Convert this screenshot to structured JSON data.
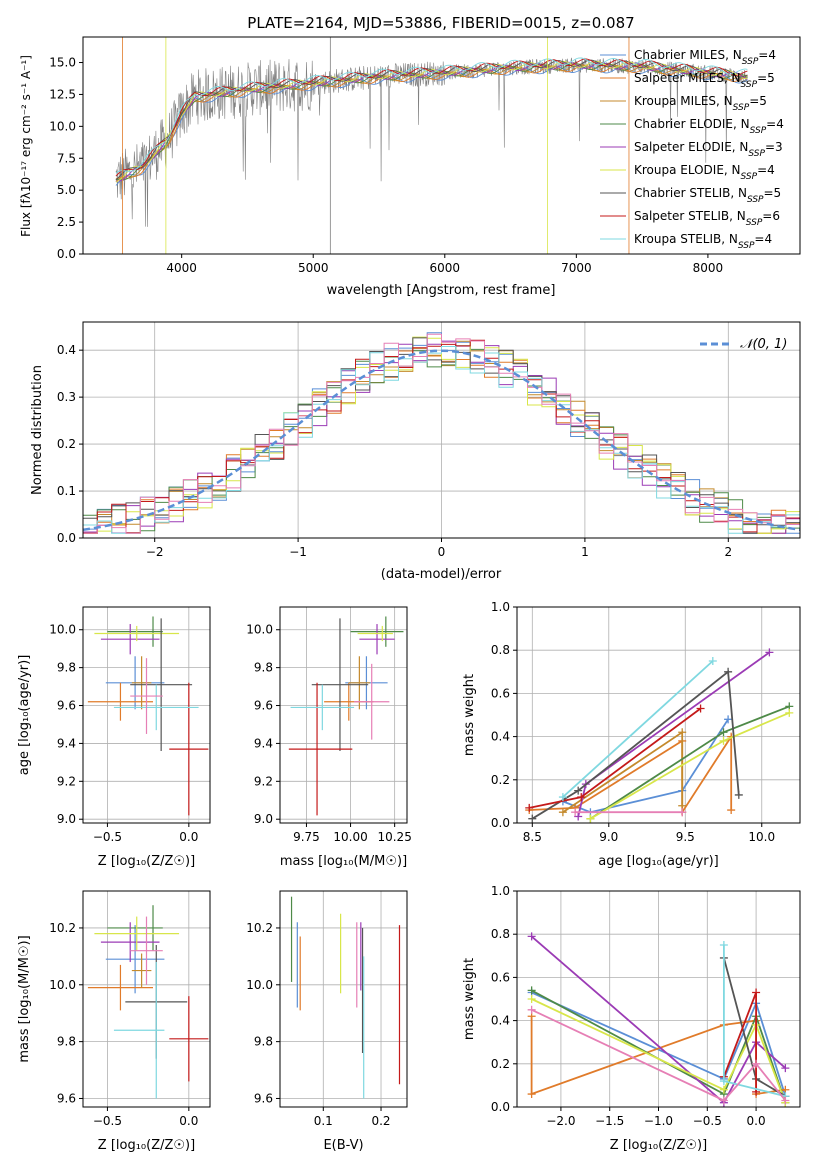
{
  "colors": {
    "chabrier_miles": "#5b8fd6",
    "salpeter_miles": "#e07b2a",
    "kroupa_miles": "#c48a2c",
    "chabrier_elodie": "#4e8a48",
    "salpeter_elodie": "#9b3bb5",
    "kroupa_elodie": "#d8e64a",
    "chabrier_stelib": "#555555",
    "salpeter_stelib": "#c41a1a",
    "kroupa_stelib": "#7fd8e0",
    "pink": "#e67fb5",
    "lime": "#b8e04a",
    "data": "#808080",
    "normal": "#5b8fd6"
  },
  "chart_data": [
    {
      "id": "spectrum",
      "type": "line",
      "title": "PLATE=2164, MJD=53886, FIBERID=0015, z=0.087",
      "xlabel": "wavelength [Angstrom, rest frame]",
      "ylabel": "Flux [fλ10⁻¹⁷ erg cm⁻² s⁻¹ A⁻¹]",
      "xlim": [
        3250,
        8700
      ],
      "ylim": [
        0,
        17
      ],
      "xticks": [
        "4000",
        "5000",
        "6000",
        "7000",
        "8000"
      ],
      "yticks": [
        "0.0",
        "2.5",
        "5.0",
        "7.5",
        "10.0",
        "12.5",
        "15.0"
      ],
      "legend": [
        "Chabrier MILES, N_SSP=4",
        "Salpeter MILES, N_SSP=5",
        "Kroupa MILES, N_SSP=5",
        "Chabrier ELODIE, N_SSP=4",
        "Salpeter ELODIE, N_SSP=3",
        "Kroupa ELODIE, N_SSP=4",
        "Chabrier STELIB, N_SSP=5",
        "Salpeter STELIB, N_SSP=6",
        "Kroupa STELIB, N_SSP=4"
      ],
      "model_curve": {
        "x": [
          3500,
          3700,
          3900,
          4000,
          4100,
          4300,
          4500,
          4800,
          5000,
          5500,
          6000,
          6500,
          7000,
          7500,
          8000,
          8300
        ],
        "y": [
          5.8,
          6.8,
          9.0,
          11.0,
          12.3,
          12.6,
          12.9,
          13.2,
          13.4,
          13.9,
          14.2,
          14.6,
          14.8,
          14.7,
          14.2,
          13.9
        ]
      }
    },
    {
      "id": "residuals",
      "type": "bar",
      "xlabel": "(data-model)/error",
      "ylabel": "Normed distribution",
      "xlim": [
        -2.5,
        2.5
      ],
      "ylim": [
        0,
        0.46
      ],
      "xticks": [
        "−2",
        "−1",
        "0",
        "1",
        "2"
      ],
      "yticks": [
        "0.0",
        "0.1",
        "0.2",
        "0.3",
        "0.4"
      ],
      "legend": [
        "𝒩(0, 1)"
      ],
      "bin_width": 0.1,
      "bin_start": -2.5
    },
    {
      "id": "age_vs_Z",
      "type": "scatter",
      "xlabel": "Z [log₁₀(Z/Z☉)]",
      "ylabel": "age  [log₁₀(age/yr)]",
      "xlim": [
        -0.65,
        0.13
      ],
      "ylim": [
        8.98,
        10.12
      ],
      "xticks": [
        "−0.5",
        "0.0"
      ],
      "xtick_values": [
        -0.5,
        0.0
      ],
      "yticks": [
        "9.0",
        "9.2",
        "9.4",
        "9.6",
        "9.8",
        "10.0"
      ],
      "ytick_values": [
        9.0,
        9.2,
        9.4,
        9.6,
        9.8,
        10.0
      ],
      "points": [
        {
          "color": "chabrier_miles",
          "x": -0.33,
          "y": 9.72,
          "xerr": [
            0.18,
            0.18
          ],
          "yerr": [
            0.14,
            0.14
          ]
        },
        {
          "color": "salpeter_miles",
          "x": -0.42,
          "y": 9.62,
          "xerr": [
            0.2,
            0.2
          ],
          "yerr": [
            0.1,
            0.1
          ]
        },
        {
          "color": "kroupa_miles",
          "x": -0.29,
          "y": 9.72,
          "xerr": [
            0.06,
            0.06
          ],
          "yerr": [
            0.14,
            0.14
          ]
        },
        {
          "color": "chabrier_elodie",
          "x": -0.22,
          "y": 9.99,
          "xerr": [
            0.28,
            0.06
          ],
          "yerr": [
            0.08,
            0.08
          ]
        },
        {
          "color": "salpeter_elodie",
          "x": -0.36,
          "y": 9.95,
          "xerr": [
            0.18,
            0.18
          ],
          "yerr": [
            0.08,
            0.08
          ]
        },
        {
          "color": "kroupa_elodie",
          "x": -0.32,
          "y": 9.98,
          "xerr": [
            0.26,
            0.26
          ],
          "yerr": [
            0.04,
            0.04
          ]
        },
        {
          "color": "chabrier_stelib",
          "x": -0.17,
          "y": 9.71,
          "xerr": [
            0.19,
            0.19
          ],
          "yerr": [
            0.35,
            0.35
          ]
        },
        {
          "color": "salpeter_stelib",
          "x": 0.0,
          "y": 9.37,
          "xerr": [
            0.12,
            0.12
          ],
          "yerr": [
            0.35,
            0.35
          ]
        },
        {
          "color": "kroupa_stelib",
          "x": -0.2,
          "y": 9.59,
          "xerr": [
            0.26,
            0.26
          ],
          "yerr": [
            0.12,
            0.12
          ]
        },
        {
          "color": "pink",
          "x": -0.26,
          "y": 9.65,
          "xerr": [
            0.1,
            0.1
          ],
          "yerr": [
            0.2,
            0.2
          ]
        }
      ]
    },
    {
      "id": "age_vs_mass",
      "type": "scatter",
      "xlabel": "mass [log₁₀(M/M☉)]",
      "ylabel": "",
      "xlim": [
        9.6,
        10.32
      ],
      "ylim": [
        8.98,
        10.12
      ],
      "xticks": [
        "9.75",
        "10.00",
        "10.25"
      ],
      "xtick_values": [
        9.75,
        10.0,
        10.25
      ],
      "yticks": [
        "9.0",
        "9.2",
        "9.4",
        "9.6",
        "9.8",
        "10.0"
      ],
      "ytick_values": [
        9.0,
        9.2,
        9.4,
        9.6,
        9.8,
        10.0
      ],
      "points": [
        {
          "color": "chabrier_miles",
          "x": 10.09,
          "y": 9.72,
          "xerr": [
            0.12,
            0.12
          ],
          "yerr": [
            0.14,
            0.14
          ]
        },
        {
          "color": "salpeter_miles",
          "x": 9.99,
          "y": 9.62,
          "xerr": [
            0.14,
            0.14
          ],
          "yerr": [
            0.1,
            0.1
          ]
        },
        {
          "color": "kroupa_miles",
          "x": 10.05,
          "y": 9.72,
          "xerr": [
            0.06,
            0.06
          ],
          "yerr": [
            0.14,
            0.14
          ]
        },
        {
          "color": "chabrier_elodie",
          "x": 10.2,
          "y": 9.99,
          "xerr": [
            0.2,
            0.1
          ],
          "yerr": [
            0.08,
            0.08
          ]
        },
        {
          "color": "salpeter_elodie",
          "x": 10.15,
          "y": 9.95,
          "xerr": [
            0.1,
            0.1
          ],
          "yerr": [
            0.08,
            0.08
          ]
        },
        {
          "color": "kroupa_elodie",
          "x": 10.18,
          "y": 9.98,
          "xerr": [
            0.14,
            0.06
          ],
          "yerr": [
            0.04,
            0.04
          ]
        },
        {
          "color": "chabrier_stelib",
          "x": 9.94,
          "y": 9.71,
          "xerr": [
            0.16,
            0.16
          ],
          "yerr": [
            0.35,
            0.35
          ]
        },
        {
          "color": "salpeter_stelib",
          "x": 9.81,
          "y": 9.37,
          "xerr": [
            0.16,
            0.2
          ],
          "yerr": [
            0.35,
            0.35
          ]
        },
        {
          "color": "kroupa_stelib",
          "x": 9.84,
          "y": 9.59,
          "xerr": [
            0.18,
            0.18
          ],
          "yerr": [
            0.12,
            0.12
          ]
        },
        {
          "color": "pink",
          "x": 10.12,
          "y": 9.62,
          "xerr": [
            0.1,
            0.1
          ],
          "yerr": [
            0.2,
            0.2
          ]
        }
      ]
    },
    {
      "id": "weight_vs_age",
      "type": "line",
      "xlabel": "age  [log₁₀(age/yr)]",
      "ylabel": "mass weight",
      "xlim": [
        8.4,
        10.25
      ],
      "ylim": [
        0,
        1.0
      ],
      "xticks": [
        "8.5",
        "9.0",
        "9.5",
        "10.0"
      ],
      "xtick_values": [
        8.5,
        9.0,
        9.5,
        10.0
      ],
      "yticks": [
        "0.0",
        "0.2",
        "0.4",
        "0.6",
        "0.8",
        "1.0"
      ],
      "ytick_values": [
        0.0,
        0.2,
        0.4,
        0.6,
        0.8,
        1.0
      ],
      "series": [
        {
          "color": "chabrier_miles",
          "x": [
            8.7,
            8.88,
            9.48,
            9.78
          ],
          "y": [
            0.1,
            0.05,
            0.15,
            0.48
          ]
        },
        {
          "color": "salpeter_miles",
          "x": [
            8.48,
            8.78,
            9.48,
            9.48,
            9.8,
            9.8
          ],
          "y": [
            0.06,
            0.07,
            0.38,
            0.05,
            0.4,
            0.06
          ]
        },
        {
          "color": "kroupa_miles",
          "x": [
            8.7,
            9.48,
            9.48
          ],
          "y": [
            0.05,
            0.42,
            0.08
          ]
        },
        {
          "color": "chabrier_elodie",
          "x": [
            8.88,
            9.75,
            10.18
          ],
          "y": [
            0.02,
            0.42,
            0.54
          ]
        },
        {
          "color": "salpeter_elodie",
          "x": [
            8.8,
            8.85,
            10.05
          ],
          "y": [
            0.03,
            0.18,
            0.79
          ]
        },
        {
          "color": "kroupa_elodie",
          "x": [
            8.88,
            9.75,
            10.18
          ],
          "y": [
            0.02,
            0.38,
            0.51
          ]
        },
        {
          "color": "chabrier_stelib",
          "x": [
            8.5,
            8.8,
            9.78,
            9.85
          ],
          "y": [
            0.02,
            0.15,
            0.7,
            0.13
          ]
        },
        {
          "color": "salpeter_stelib",
          "x": [
            8.48,
            8.82,
            9.6
          ],
          "y": [
            0.07,
            0.12,
            0.53
          ]
        },
        {
          "color": "kroupa_stelib",
          "x": [
            8.7,
            9.68
          ],
          "y": [
            0.12,
            0.75
          ]
        },
        {
          "color": "pink",
          "x": [
            8.78,
            9.48
          ],
          "y": [
            0.05,
            0.05
          ]
        }
      ]
    },
    {
      "id": "mass_vs_Z",
      "type": "scatter",
      "xlabel": "Z [log₁₀(Z/Z☉)]",
      "ylabel": "mass [log₁₀(M/M☉)]",
      "xlim": [
        -0.65,
        0.13
      ],
      "ylim": [
        9.57,
        10.33
      ],
      "xticks": [
        "−0.5",
        "0.0"
      ],
      "xtick_values": [
        -0.5,
        0.0
      ],
      "yticks": [
        "9.6",
        "9.8",
        "10.0",
        "10.2"
      ],
      "ytick_values": [
        9.6,
        9.8,
        10.0,
        10.2
      ],
      "points": [
        {
          "color": "chabrier_miles",
          "x": -0.33,
          "y": 10.09,
          "xerr": [
            0.18,
            0.18
          ],
          "yerr": [
            0.12,
            0.12
          ]
        },
        {
          "color": "salpeter_miles",
          "x": -0.42,
          "y": 9.99,
          "xerr": [
            0.2,
            0.2
          ],
          "yerr": [
            0.08,
            0.08
          ]
        },
        {
          "color": "kroupa_miles",
          "x": -0.29,
          "y": 10.05,
          "xerr": [
            0.06,
            0.06
          ],
          "yerr": [
            0.06,
            0.06
          ]
        },
        {
          "color": "chabrier_elodie",
          "x": -0.22,
          "y": 10.2,
          "xerr": [
            0.28,
            0.06
          ],
          "yerr": [
            0.08,
            0.08
          ]
        },
        {
          "color": "salpeter_elodie",
          "x": -0.36,
          "y": 10.15,
          "xerr": [
            0.18,
            0.18
          ],
          "yerr": [
            0.07,
            0.07
          ]
        },
        {
          "color": "kroupa_elodie",
          "x": -0.32,
          "y": 10.18,
          "xerr": [
            0.26,
            0.26
          ],
          "yerr": [
            0.06,
            0.06
          ]
        },
        {
          "color": "chabrier_stelib",
          "x": -0.2,
          "y": 9.94,
          "xerr": [
            0.19,
            0.19
          ],
          "yerr": [
            0.2,
            0.2
          ]
        },
        {
          "color": "salpeter_stelib",
          "x": 0.0,
          "y": 9.81,
          "xerr": [
            0.12,
            0.12
          ],
          "yerr": [
            0.15,
            0.15
          ]
        },
        {
          "color": "kroupa_stelib",
          "x": -0.2,
          "y": 9.84,
          "xerr": [
            0.26,
            0.05
          ],
          "yerr": [
            0.24,
            0.24
          ]
        },
        {
          "color": "pink",
          "x": -0.26,
          "y": 10.12,
          "xerr": [
            0.1,
            0.1
          ],
          "yerr": [
            0.12,
            0.12
          ]
        }
      ]
    },
    {
      "id": "mass_vs_ebv",
      "type": "scatter",
      "xlabel": "E(B-V)",
      "ylabel": "",
      "xlim": [
        0.025,
        0.245
      ],
      "ylim": [
        9.57,
        10.33
      ],
      "xticks": [
        "0.1",
        "0.2"
      ],
      "xtick_values": [
        0.1,
        0.2
      ],
      "yticks": [
        "9.6",
        "9.8",
        "10.0",
        "10.2"
      ],
      "ytick_values": [
        9.6,
        9.8,
        10.0,
        10.2
      ],
      "points": [
        {
          "color": "chabrier_miles",
          "x": 0.055,
          "y": 10.07,
          "xerr": [
            0,
            0
          ],
          "yerr": [
            0.15,
            0.15
          ]
        },
        {
          "color": "salpeter_miles",
          "x": 0.06,
          "y": 10.04,
          "xerr": [
            0,
            0
          ],
          "yerr": [
            0.13,
            0.13
          ]
        },
        {
          "color": "chabrier_elodie",
          "x": 0.045,
          "y": 10.16,
          "xerr": [
            0,
            0
          ],
          "yerr": [
            0.15,
            0.15
          ]
        },
        {
          "color": "kroupa_elodie",
          "x": 0.13,
          "y": 10.11,
          "xerr": [
            0,
            0
          ],
          "yerr": [
            0.14,
            0.14
          ]
        },
        {
          "color": "pink",
          "x": 0.158,
          "y": 10.07,
          "xerr": [
            0,
            0
          ],
          "yerr": [
            0.15,
            0.15
          ]
        },
        {
          "color": "salpeter_elodie",
          "x": 0.165,
          "y": 10.1,
          "xerr": [
            0,
            0
          ],
          "yerr": [
            0.12,
            0.12
          ]
        },
        {
          "color": "chabrier_stelib",
          "x": 0.168,
          "y": 9.98,
          "xerr": [
            0,
            0
          ],
          "yerr": [
            0.22,
            0.22
          ]
        },
        {
          "color": "kroupa_stelib",
          "x": 0.17,
          "y": 9.85,
          "xerr": [
            0,
            0
          ],
          "yerr": [
            0.25,
            0.25
          ]
        },
        {
          "color": "salpeter_stelib",
          "x": 0.232,
          "y": 9.93,
          "xerr": [
            0,
            0
          ],
          "yerr": [
            0.28,
            0.28
          ]
        }
      ]
    },
    {
      "id": "weight_vs_Z",
      "type": "line",
      "xlabel": "Z [log₁₀(Z/Z☉)]",
      "ylabel": "mass weight",
      "xlim": [
        -2.45,
        0.45
      ],
      "ylim": [
        0,
        1.0
      ],
      "xticks": [
        "−2.0",
        "−1.5",
        "−1.0",
        "−0.5",
        "0.0"
      ],
      "xtick_values": [
        -2.0,
        -1.5,
        -1.0,
        -0.5,
        0.0
      ],
      "yticks": [
        "0.0",
        "0.2",
        "0.4",
        "0.6",
        "0.8",
        "1.0"
      ],
      "ytick_values": [
        0.0,
        0.2,
        0.4,
        0.6,
        0.8,
        1.0
      ],
      "series": [
        {
          "color": "chabrier_miles",
          "x": [
            -2.3,
            -0.33,
            0.0,
            0.3
          ],
          "y": [
            0.53,
            0.13,
            0.48,
            0.05
          ]
        },
        {
          "color": "salpeter_miles",
          "x": [
            -2.3,
            -2.3,
            -0.33,
            0.0,
            0.0,
            0.3
          ],
          "y": [
            0.42,
            0.06,
            0.38,
            0.4,
            0.06,
            0.08
          ]
        },
        {
          "color": "chabrier_elodie",
          "x": [
            -2.3,
            -0.33,
            0.0,
            0.3
          ],
          "y": [
            0.54,
            0.06,
            0.42,
            0.02
          ]
        },
        {
          "color": "salpeter_elodie",
          "x": [
            -2.3,
            -0.33,
            0.0,
            0.3
          ],
          "y": [
            0.79,
            0.02,
            0.3,
            0.18
          ]
        },
        {
          "color": "kroupa_elodie",
          "x": [
            -2.3,
            -0.33,
            0.0,
            0.3
          ],
          "y": [
            0.5,
            0.08,
            0.38,
            0.02
          ]
        },
        {
          "color": "chabrier_stelib",
          "x": [
            -0.33,
            0.0,
            0.3
          ],
          "y": [
            0.69,
            0.13,
            0.05
          ]
        },
        {
          "color": "salpeter_stelib",
          "x": [
            -0.33,
            0.0,
            0.0
          ],
          "y": [
            0.14,
            0.53,
            0.07
          ]
        },
        {
          "color": "kroupa_stelib",
          "x": [
            -0.33,
            -0.33,
            0.3
          ],
          "y": [
            0.75,
            0.12,
            0.05
          ]
        },
        {
          "color": "pink",
          "x": [
            -2.3,
            -0.33,
            0.0,
            0.3
          ],
          "y": [
            0.45,
            0.03,
            0.2,
            0.03
          ]
        }
      ]
    }
  ]
}
